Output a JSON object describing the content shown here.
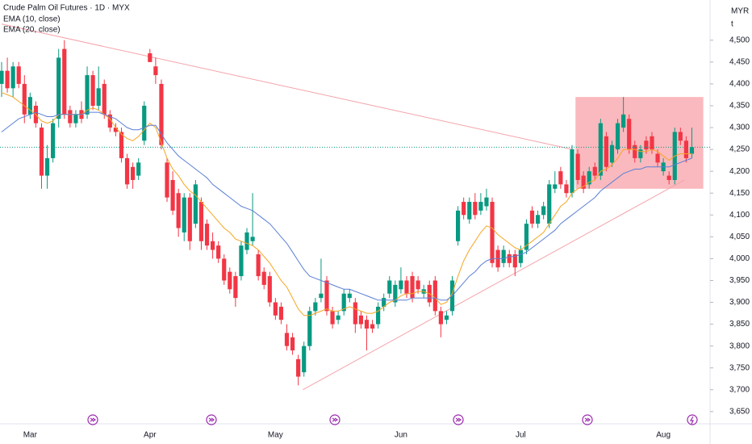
{
  "chart_data": {
    "type": "candlestick",
    "title": "Crude Palm Oil Futures · 1D · MYX",
    "currency": "MYR",
    "unit": "t",
    "categories": [
      null,
      null,
      null,
      null,
      null,
      "Mar",
      null,
      null,
      null,
      null,
      null,
      null,
      null,
      null,
      null,
      null,
      null,
      null,
      null,
      null,
      null,
      null,
      null,
      null,
      null,
      null,
      "Apr",
      null,
      null,
      null,
      null,
      null,
      null,
      null,
      null,
      null,
      null,
      null,
      null,
      null,
      null,
      null,
      null,
      null,
      null,
      null,
      null,
      null,
      "May",
      null,
      null,
      null,
      null,
      null,
      null,
      null,
      null,
      null,
      null,
      null,
      null,
      null,
      null,
      null,
      null,
      null,
      null,
      null,
      null,
      null,
      "Jun",
      null,
      null,
      null,
      null,
      null,
      null,
      null,
      null,
      null,
      null,
      null,
      null,
      null,
      null,
      null,
      null,
      null,
      null,
      null,
      null,
      "Jul",
      null,
      null,
      null,
      null,
      null,
      null,
      null,
      null,
      null,
      null,
      null,
      null,
      null,
      null,
      null,
      null,
      null,
      null,
      null,
      null,
      null,
      null,
      null,
      null,
      "Aug",
      null,
      null,
      null,
      null,
      null
    ],
    "open": [
      4400,
      4430,
      4390,
      4440,
      4400,
      4330,
      4350,
      4300,
      4190,
      4230,
      4320,
      4480,
      4340,
      4310,
      4340,
      4330,
      4420,
      4350,
      4400,
      4330,
      4300,
      4290,
      4230,
      4210,
      4190,
      4270,
      4470,
      4440,
      4400,
      4220,
      4180,
      4150,
      4060,
      4140,
      4080,
      4130,
      4080,
      4040,
      4030,
      4000,
      3970,
      3960,
      3960,
      4020,
      4040,
      4010,
      3970,
      3960,
      3900,
      3890,
      3830,
      3820,
      3770,
      3740,
      3800,
      3880,
      3910,
      3950,
      3880,
      3860,
      3880,
      3910,
      3900,
      3870,
      3860,
      3850,
      3850,
      3890,
      3920,
      3900,
      3930,
      3950,
      3960,
      3950,
      3920,
      3940,
      3950,
      3880,
      3860,
      3880,
      4040,
      4130,
      4090,
      4130,
      4110,
      4120,
      4130,
      4020,
      3990,
      4010,
      4010,
      3990,
      4020,
      4110,
      4080,
      4100,
      4080,
      4160,
      4200,
      4170,
      4150,
      4240,
      4190,
      4170,
      4210,
      4190,
      4280,
      4220,
      4250,
      4300,
      4320,
      4260,
      4230,
      4270,
      4280,
      4240,
      4200,
      4190,
      4180,
      4290,
      4270,
      4240
    ],
    "high": [
      4450,
      4460,
      4450,
      4450,
      4420,
      4380,
      4360,
      4310,
      4260,
      4320,
      4480,
      4500,
      4350,
      4340,
      4360,
      4440,
      4430,
      4440,
      4410,
      4340,
      4310,
      4300,
      4240,
      4220,
      4230,
      4360,
      4480,
      4460,
      4410,
      4230,
      4200,
      4160,
      4150,
      4150,
      4180,
      4140,
      4090,
      4060,
      4040,
      4010,
      3980,
      3970,
      4040,
      4070,
      4150,
      4020,
      3980,
      3970,
      3910,
      3900,
      3850,
      3830,
      3780,
      3810,
      3890,
      3910,
      4000,
      3960,
      3890,
      3880,
      3930,
      3930,
      3910,
      3880,
      3870,
      3860,
      3900,
      3920,
      3960,
      3950,
      3980,
      3960,
      3970,
      3960,
      3940,
      3950,
      3960,
      3890,
      3880,
      3960,
      4120,
      4140,
      4140,
      4150,
      4150,
      4160,
      4140,
      4030,
      4030,
      4020,
      4020,
      4030,
      4090,
      4120,
      4110,
      4130,
      4180,
      4200,
      4210,
      4180,
      4260,
      4250,
      4200,
      4210,
      4220,
      4320,
      4290,
      4270,
      4320,
      4370,
      4330,
      4270,
      4260,
      4280,
      4290,
      4250,
      4230,
      4200,
      4300,
      4300,
      4280,
      4300
    ],
    "low": [
      4370,
      4380,
      4370,
      4390,
      4310,
      4320,
      4300,
      4160,
      4160,
      4220,
      4300,
      4320,
      4300,
      4300,
      4310,
      4320,
      4340,
      4340,
      4320,
      4290,
      4280,
      4220,
      4160,
      4160,
      4180,
      4260,
      4450,
      4400,
      4250,
      4130,
      4100,
      4050,
      4040,
      4020,
      4070,
      4020,
      4020,
      4000,
      3990,
      3940,
      3920,
      3890,
      3950,
      4010,
      4030,
      3950,
      3930,
      3890,
      3860,
      3850,
      3790,
      3780,
      3710,
      3730,
      3790,
      3870,
      3900,
      3870,
      3840,
      3850,
      3870,
      3900,
      3830,
      3840,
      3790,
      3830,
      3840,
      3880,
      3910,
      3890,
      3920,
      3910,
      3900,
      3920,
      3910,
      3890,
      3870,
      3820,
      3850,
      3870,
      4030,
      4090,
      4080,
      4090,
      4100,
      4110,
      3980,
      3970,
      3980,
      3980,
      3960,
      3980,
      4010,
      4070,
      4070,
      4090,
      4070,
      4150,
      4160,
      4140,
      4140,
      4170,
      4150,
      4160,
      4180,
      4180,
      4200,
      4210,
      4240,
      4290,
      4240,
      4220,
      4220,
      4240,
      4240,
      4210,
      4190,
      4170,
      4170,
      4260,
      4220,
      4230
    ],
    "close": [
      4430,
      4390,
      4440,
      4400,
      4330,
      4370,
      4310,
      4190,
      4230,
      4310,
      4460,
      4330,
      4310,
      4330,
      4320,
      4420,
      4350,
      4390,
      4330,
      4300,
      4290,
      4230,
      4170,
      4180,
      4220,
      4350,
      4450,
      4420,
      4260,
      4140,
      4110,
      4070,
      4140,
      4040,
      4170,
      4040,
      4030,
      4020,
      4000,
      3950,
      3930,
      3910,
      4030,
      4060,
      4050,
      3960,
      3940,
      3900,
      3870,
      3860,
      3800,
      3790,
      3730,
      3800,
      3880,
      3900,
      3920,
      3880,
      3850,
      3870,
      3920,
      3920,
      3850,
      3850,
      3840,
      3840,
      3890,
      3910,
      3950,
      3940,
      3950,
      3920,
      3910,
      3930,
      3930,
      3900,
      3880,
      3850,
      3870,
      3950,
      4110,
      4100,
      4130,
      4100,
      4130,
      4140,
      3990,
      3980,
      4020,
      3990,
      3980,
      4020,
      4080,
      4080,
      4100,
      4120,
      4170,
      4170,
      4170,
      4150,
      4250,
      4180,
      4160,
      4200,
      4190,
      4310,
      4210,
      4260,
      4310,
      4330,
      4250,
      4230,
      4250,
      4250,
      4250,
      4220,
      4220,
      4180,
      4290,
      4270,
      4230,
      4255
    ],
    "up_color": "#089981",
    "down_color": "#f23645",
    "series": [
      {
        "name": "EMA (10, close)",
        "color": "#f5a623",
        "values": [
          4380,
          4375,
          4370,
          4360,
          4350,
          4340,
          4330,
          4315,
          4310,
          4315,
          4330,
          4330,
          4330,
          4330,
          4330,
          4340,
          4345,
          4340,
          4330,
          4320,
          4300,
          4285,
          4275,
          4270,
          4280,
          4295,
          4310,
          4300,
          4265,
          4230,
          4205,
          4190,
          4170,
          4155,
          4145,
          4130,
          4115,
          4100,
          4085,
          4070,
          4060,
          4045,
          4040,
          4035,
          4030,
          4020,
          4005,
          3990,
          3970,
          3950,
          3935,
          3910,
          3885,
          3870,
          3870,
          3875,
          3880,
          3885,
          3880,
          3880,
          3885,
          3890,
          3885,
          3880,
          3875,
          3875,
          3880,
          3890,
          3900,
          3905,
          3915,
          3920,
          3920,
          3925,
          3925,
          3920,
          3910,
          3895,
          3900,
          3920,
          3960,
          3995,
          4020,
          4040,
          4060,
          4075,
          4070,
          4055,
          4045,
          4035,
          4025,
          4020,
          4030,
          4040,
          4050,
          4060,
          4080,
          4100,
          4120,
          4130,
          4150,
          4160,
          4165,
          4175,
          4180,
          4200,
          4205,
          4215,
          4230,
          4250,
          4250,
          4250,
          4245,
          4245,
          4250,
          4245,
          4235,
          4225,
          4235,
          4240,
          4240,
          4240
        ]
      },
      {
        "name": "EMA (20, close)",
        "color": "#5b7fd6",
        "values": [
          4290,
          4300,
          4310,
          4320,
          4325,
          4330,
          4335,
          4330,
          4325,
          4325,
          4330,
          4330,
          4330,
          4330,
          4330,
          4335,
          4335,
          4335,
          4330,
          4325,
          4320,
          4310,
          4300,
          4295,
          4295,
          4300,
          4305,
          4305,
          4285,
          4265,
          4250,
          4235,
          4225,
          4215,
          4205,
          4195,
          4185,
          4170,
          4160,
          4150,
          4140,
          4130,
          4120,
          4115,
          4110,
          4100,
          4090,
          4080,
          4065,
          4050,
          4035,
          4015,
          3995,
          3975,
          3960,
          3955,
          3950,
          3945,
          3940,
          3935,
          3930,
          3930,
          3925,
          3920,
          3915,
          3910,
          3905,
          3905,
          3905,
          3905,
          3905,
          3905,
          3910,
          3910,
          3910,
          3910,
          3910,
          3905,
          3905,
          3915,
          3930,
          3945,
          3960,
          3970,
          3985,
          3995,
          4000,
          4000,
          4000,
          4005,
          4005,
          4010,
          4015,
          4025,
          4035,
          4045,
          4055,
          4065,
          4080,
          4090,
          4100,
          4110,
          4120,
          4130,
          4140,
          4155,
          4165,
          4175,
          4185,
          4195,
          4200,
          4205,
          4205,
          4210,
          4210,
          4210,
          4210,
          4210,
          4215,
          4220,
          4225,
          4230
        ]
      }
    ],
    "drawings": {
      "lines": [
        {
          "from": [
            0,
            4537
          ],
          "to": [
            100.4,
            4249
          ]
        },
        {
          "from": [
            52.8,
            3700
          ],
          "to": [
            119.7,
            4180
          ]
        }
      ],
      "box": {
        "from": [
          100.6,
          4370
        ],
        "to": [
          123,
          4160
        ]
      }
    },
    "ylim": [
      3622,
      4592
    ],
    "yticks": [
      {
        "value": 3650,
        "label": "3,650"
      },
      {
        "value": 3700,
        "label": "3,700"
      },
      {
        "value": 3750,
        "label": "3,750"
      },
      {
        "value": 3800,
        "label": "3,800"
      },
      {
        "value": 3850,
        "label": "3,850"
      },
      {
        "value": 3900,
        "label": "3,900"
      },
      {
        "value": 3950,
        "label": "3,950"
      },
      {
        "value": 4000,
        "label": "4,000"
      },
      {
        "value": 4050,
        "label": "4,050"
      },
      {
        "value": 4100,
        "label": "4,100"
      },
      {
        "value": 4150,
        "label": "4,150"
      },
      {
        "value": 4200,
        "label": "4,200"
      },
      {
        "value": 4250,
        "label": "4,250"
      },
      {
        "value": 4300,
        "label": "4,300"
      },
      {
        "value": 4350,
        "label": "4,350"
      },
      {
        "value": 4400,
        "label": "4,400"
      },
      {
        "value": 4450,
        "label": "4,450"
      },
      {
        "value": 4500,
        "label": "4,500"
      }
    ]
  }
}
